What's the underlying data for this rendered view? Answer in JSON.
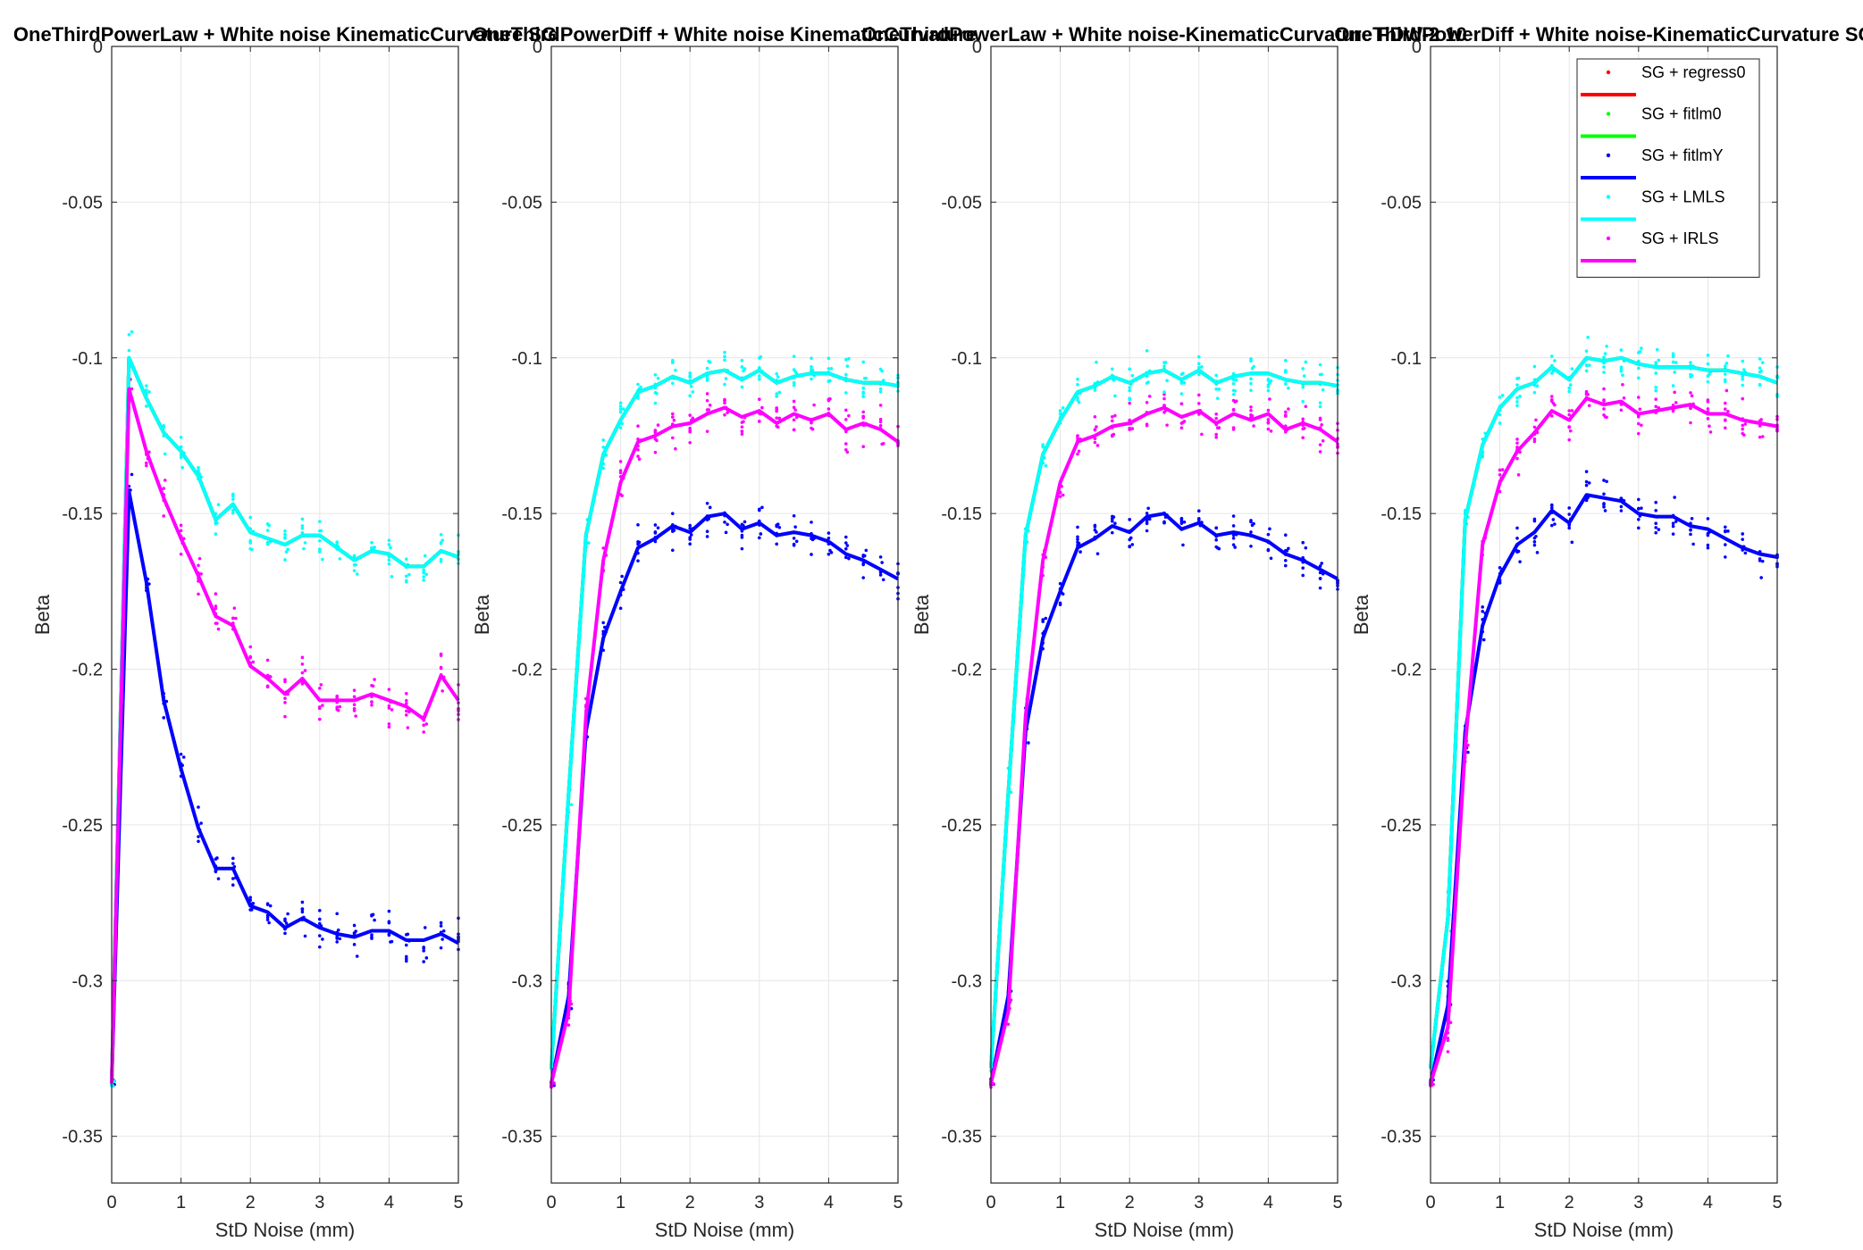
{
  "chart_data": [
    {
      "type": "line",
      "title": "OneThirdPowerLaw + White noise KinematicCurvature SG",
      "xlabel": "StD Noise (mm)",
      "ylabel": "Beta",
      "xlim": [
        0,
        5
      ],
      "ylim": [
        -0.365,
        0
      ],
      "xticks": [
        "0",
        "1",
        "2",
        "3",
        "4",
        "5"
      ],
      "yticks": [
        "0",
        "-0.05",
        "-0.1",
        "-0.15",
        "-0.2",
        "-0.25",
        "-0.3",
        "-0.35"
      ],
      "grid": true,
      "x": [
        0,
        0.25,
        0.5,
        0.75,
        1,
        1.25,
        1.5,
        1.75,
        2,
        2.25,
        2.5,
        2.75,
        3,
        3.25,
        3.5,
        3.75,
        4,
        4.25,
        4.5,
        4.75,
        5
      ],
      "series": [
        {
          "name": "SG + regress0",
          "color": "#ff0000",
          "values": [
            -0.333,
            -0.1,
            -0.113,
            -0.124,
            -0.13,
            -0.138,
            -0.152,
            -0.147,
            -0.156,
            -0.158,
            -0.16,
            -0.157,
            -0.157,
            -0.161,
            -0.165,
            -0.162,
            -0.163,
            -0.167,
            -0.167,
            -0.162,
            -0.164
          ]
        },
        {
          "name": "SG + fitlm0",
          "color": "#00ff00",
          "values": [
            -0.333,
            -0.1,
            -0.113,
            -0.124,
            -0.13,
            -0.138,
            -0.152,
            -0.147,
            -0.156,
            -0.158,
            -0.16,
            -0.157,
            -0.157,
            -0.161,
            -0.165,
            -0.162,
            -0.163,
            -0.167,
            -0.167,
            -0.162,
            -0.164
          ]
        },
        {
          "name": "SG + fitlmY",
          "color": "#0000ff",
          "values": [
            -0.333,
            -0.143,
            -0.172,
            -0.21,
            -0.232,
            -0.251,
            -0.264,
            -0.264,
            -0.276,
            -0.278,
            -0.283,
            -0.28,
            -0.283,
            -0.285,
            -0.286,
            -0.284,
            -0.284,
            -0.287,
            -0.287,
            -0.285,
            -0.288
          ]
        },
        {
          "name": "SG + LMLS",
          "color": "#00ffff",
          "values": [
            -0.333,
            -0.1,
            -0.113,
            -0.124,
            -0.13,
            -0.138,
            -0.152,
            -0.147,
            -0.156,
            -0.158,
            -0.16,
            -0.157,
            -0.157,
            -0.161,
            -0.165,
            -0.162,
            -0.163,
            -0.167,
            -0.167,
            -0.162,
            -0.164
          ]
        },
        {
          "name": "SG + IRLS",
          "color": "#ff00ff",
          "values": [
            -0.333,
            -0.11,
            -0.13,
            -0.145,
            -0.158,
            -0.17,
            -0.183,
            -0.186,
            -0.199,
            -0.203,
            -0.208,
            -0.203,
            -0.21,
            -0.21,
            -0.21,
            -0.208,
            -0.21,
            -0.212,
            -0.216,
            -0.202,
            -0.21
          ]
        }
      ]
    },
    {
      "type": "line",
      "title": "OneThirdPowerDiff + White noise KinematicCurvature",
      "xlabel": "StD Noise (mm)",
      "ylabel": "Beta",
      "xlim": [
        0,
        5
      ],
      "ylim": [
        -0.365,
        0
      ],
      "xticks": [
        "0",
        "1",
        "2",
        "3",
        "4",
        "5"
      ],
      "yticks": [
        "0",
        "-0.05",
        "-0.1",
        "-0.15",
        "-0.2",
        "-0.25",
        "-0.3",
        "-0.35"
      ],
      "grid": true,
      "x": [
        0,
        0.25,
        0.5,
        0.75,
        1,
        1.25,
        1.5,
        1.75,
        2,
        2.25,
        2.5,
        2.75,
        3,
        3.25,
        3.5,
        3.75,
        4,
        4.25,
        4.5,
        4.75,
        5
      ],
      "series": [
        {
          "name": "SG + regress0",
          "color": "#ff0000",
          "values": [
            -0.328,
            -0.24,
            -0.157,
            -0.131,
            -0.12,
            -0.111,
            -0.109,
            -0.106,
            -0.108,
            -0.105,
            -0.104,
            -0.107,
            -0.104,
            -0.108,
            -0.106,
            -0.105,
            -0.105,
            -0.107,
            -0.108,
            -0.108,
            -0.109
          ]
        },
        {
          "name": "SG + fitlm0",
          "color": "#00ff00",
          "values": [
            -0.328,
            -0.24,
            -0.157,
            -0.131,
            -0.12,
            -0.111,
            -0.109,
            -0.106,
            -0.108,
            -0.105,
            -0.104,
            -0.107,
            -0.104,
            -0.108,
            -0.106,
            -0.105,
            -0.105,
            -0.107,
            -0.108,
            -0.108,
            -0.109
          ]
        },
        {
          "name": "SG + fitlmY",
          "color": "#0000ff",
          "values": [
            -0.333,
            -0.305,
            -0.22,
            -0.19,
            -0.175,
            -0.161,
            -0.158,
            -0.154,
            -0.156,
            -0.151,
            -0.15,
            -0.155,
            -0.153,
            -0.157,
            -0.156,
            -0.157,
            -0.159,
            -0.163,
            -0.165,
            -0.168,
            -0.171
          ]
        },
        {
          "name": "SG + LMLS",
          "color": "#00ffff",
          "values": [
            -0.328,
            -0.24,
            -0.157,
            -0.131,
            -0.12,
            -0.111,
            -0.109,
            -0.106,
            -0.108,
            -0.105,
            -0.104,
            -0.107,
            -0.104,
            -0.108,
            -0.106,
            -0.105,
            -0.105,
            -0.107,
            -0.108,
            -0.108,
            -0.109
          ]
        },
        {
          "name": "SG + IRLS",
          "color": "#ff00ff",
          "values": [
            -0.333,
            -0.31,
            -0.215,
            -0.165,
            -0.14,
            -0.127,
            -0.125,
            -0.122,
            -0.121,
            -0.118,
            -0.116,
            -0.119,
            -0.117,
            -0.121,
            -0.118,
            -0.12,
            -0.118,
            -0.123,
            -0.121,
            -0.123,
            -0.127
          ]
        }
      ]
    },
    {
      "type": "line",
      "title": "OneThirdPowerLaw + White noise-KinematicCurvature FDW-2 10",
      "xlabel": "StD Noise (mm)",
      "ylabel": "Beta",
      "xlim": [
        0,
        5
      ],
      "ylim": [
        -0.365,
        0
      ],
      "xticks": [
        "0",
        "1",
        "2",
        "3",
        "4",
        "5"
      ],
      "yticks": [
        "0",
        "-0.05",
        "-0.1",
        "-0.15",
        "-0.2",
        "-0.25",
        "-0.3",
        "-0.35"
      ],
      "grid": true,
      "x": [
        0,
        0.25,
        0.5,
        0.75,
        1,
        1.25,
        1.5,
        1.75,
        2,
        2.25,
        2.5,
        2.75,
        3,
        3.25,
        3.5,
        3.75,
        4,
        4.25,
        4.5,
        4.75,
        5
      ],
      "series": [
        {
          "name": "SG + regress0",
          "color": "#ff0000",
          "values": [
            -0.328,
            -0.24,
            -0.157,
            -0.131,
            -0.12,
            -0.111,
            -0.109,
            -0.106,
            -0.108,
            -0.105,
            -0.104,
            -0.107,
            -0.104,
            -0.108,
            -0.106,
            -0.105,
            -0.105,
            -0.107,
            -0.108,
            -0.108,
            -0.109
          ]
        },
        {
          "name": "SG + fitlm0",
          "color": "#00ff00",
          "values": [
            -0.328,
            -0.24,
            -0.157,
            -0.131,
            -0.12,
            -0.111,
            -0.109,
            -0.106,
            -0.108,
            -0.105,
            -0.104,
            -0.107,
            -0.104,
            -0.108,
            -0.106,
            -0.105,
            -0.105,
            -0.107,
            -0.108,
            -0.108,
            -0.109
          ]
        },
        {
          "name": "SG + fitlmY",
          "color": "#0000ff",
          "values": [
            -0.333,
            -0.305,
            -0.22,
            -0.19,
            -0.175,
            -0.161,
            -0.158,
            -0.154,
            -0.156,
            -0.151,
            -0.15,
            -0.155,
            -0.153,
            -0.157,
            -0.156,
            -0.157,
            -0.159,
            -0.163,
            -0.165,
            -0.168,
            -0.171
          ]
        },
        {
          "name": "SG + LMLS",
          "color": "#00ffff",
          "values": [
            -0.328,
            -0.24,
            -0.157,
            -0.131,
            -0.12,
            -0.111,
            -0.109,
            -0.106,
            -0.108,
            -0.105,
            -0.104,
            -0.107,
            -0.104,
            -0.108,
            -0.106,
            -0.105,
            -0.105,
            -0.107,
            -0.108,
            -0.108,
            -0.109
          ]
        },
        {
          "name": "SG + IRLS",
          "color": "#ff00ff",
          "values": [
            -0.333,
            -0.31,
            -0.215,
            -0.165,
            -0.14,
            -0.127,
            -0.125,
            -0.122,
            -0.121,
            -0.118,
            -0.116,
            -0.119,
            -0.117,
            -0.121,
            -0.118,
            -0.12,
            -0.118,
            -0.123,
            -0.121,
            -0.123,
            -0.127
          ]
        }
      ]
    },
    {
      "type": "line",
      "title": "OneThirdPowerDiff + White noise-KinematicCurvature SG",
      "xlabel": "StD Noise (mm)",
      "ylabel": "Beta",
      "xlim": [
        0,
        5
      ],
      "ylim": [
        -0.365,
        0
      ],
      "xticks": [
        "0",
        "1",
        "2",
        "3",
        "4",
        "5"
      ],
      "yticks": [
        "0",
        "-0.05",
        "-0.1",
        "-0.15",
        "-0.2",
        "-0.25",
        "-0.3",
        "-0.35"
      ],
      "grid": true,
      "legend": "top-right",
      "x": [
        0,
        0.25,
        0.5,
        0.75,
        1,
        1.25,
        1.5,
        1.75,
        2,
        2.25,
        2.5,
        2.75,
        3,
        3.25,
        3.5,
        3.75,
        4,
        4.25,
        4.5,
        4.75,
        5
      ],
      "series": [
        {
          "name": "SG + regress0",
          "color": "#ff0000",
          "values": [
            -0.328,
            -0.28,
            -0.152,
            -0.128,
            -0.116,
            -0.11,
            -0.108,
            -0.103,
            -0.107,
            -0.1,
            -0.101,
            -0.1,
            -0.102,
            -0.103,
            -0.103,
            -0.103,
            -0.104,
            -0.104,
            -0.105,
            -0.106,
            -0.108
          ]
        },
        {
          "name": "SG + fitlm0",
          "color": "#00ff00",
          "values": [
            -0.328,
            -0.28,
            -0.152,
            -0.128,
            -0.116,
            -0.11,
            -0.108,
            -0.103,
            -0.107,
            -0.1,
            -0.101,
            -0.1,
            -0.102,
            -0.103,
            -0.103,
            -0.103,
            -0.104,
            -0.104,
            -0.105,
            -0.106,
            -0.108
          ]
        },
        {
          "name": "SG + fitlmY",
          "color": "#0000ff",
          "values": [
            -0.333,
            -0.308,
            -0.22,
            -0.186,
            -0.17,
            -0.16,
            -0.156,
            -0.149,
            -0.153,
            -0.144,
            -0.145,
            -0.146,
            -0.15,
            -0.151,
            -0.151,
            -0.154,
            -0.155,
            -0.158,
            -0.161,
            -0.163,
            -0.164
          ]
        },
        {
          "name": "SG + LMLS",
          "color": "#00ffff",
          "values": [
            -0.328,
            -0.28,
            -0.152,
            -0.128,
            -0.116,
            -0.11,
            -0.108,
            -0.103,
            -0.107,
            -0.1,
            -0.101,
            -0.1,
            -0.102,
            -0.103,
            -0.103,
            -0.103,
            -0.104,
            -0.104,
            -0.105,
            -0.106,
            -0.108
          ]
        },
        {
          "name": "SG + IRLS",
          "color": "#ff00ff",
          "values": [
            -0.333,
            -0.315,
            -0.225,
            -0.16,
            -0.14,
            -0.13,
            -0.124,
            -0.117,
            -0.12,
            -0.113,
            -0.115,
            -0.114,
            -0.118,
            -0.117,
            -0.116,
            -0.115,
            -0.118,
            -0.118,
            -0.12,
            -0.121,
            -0.122
          ]
        }
      ]
    }
  ]
}
